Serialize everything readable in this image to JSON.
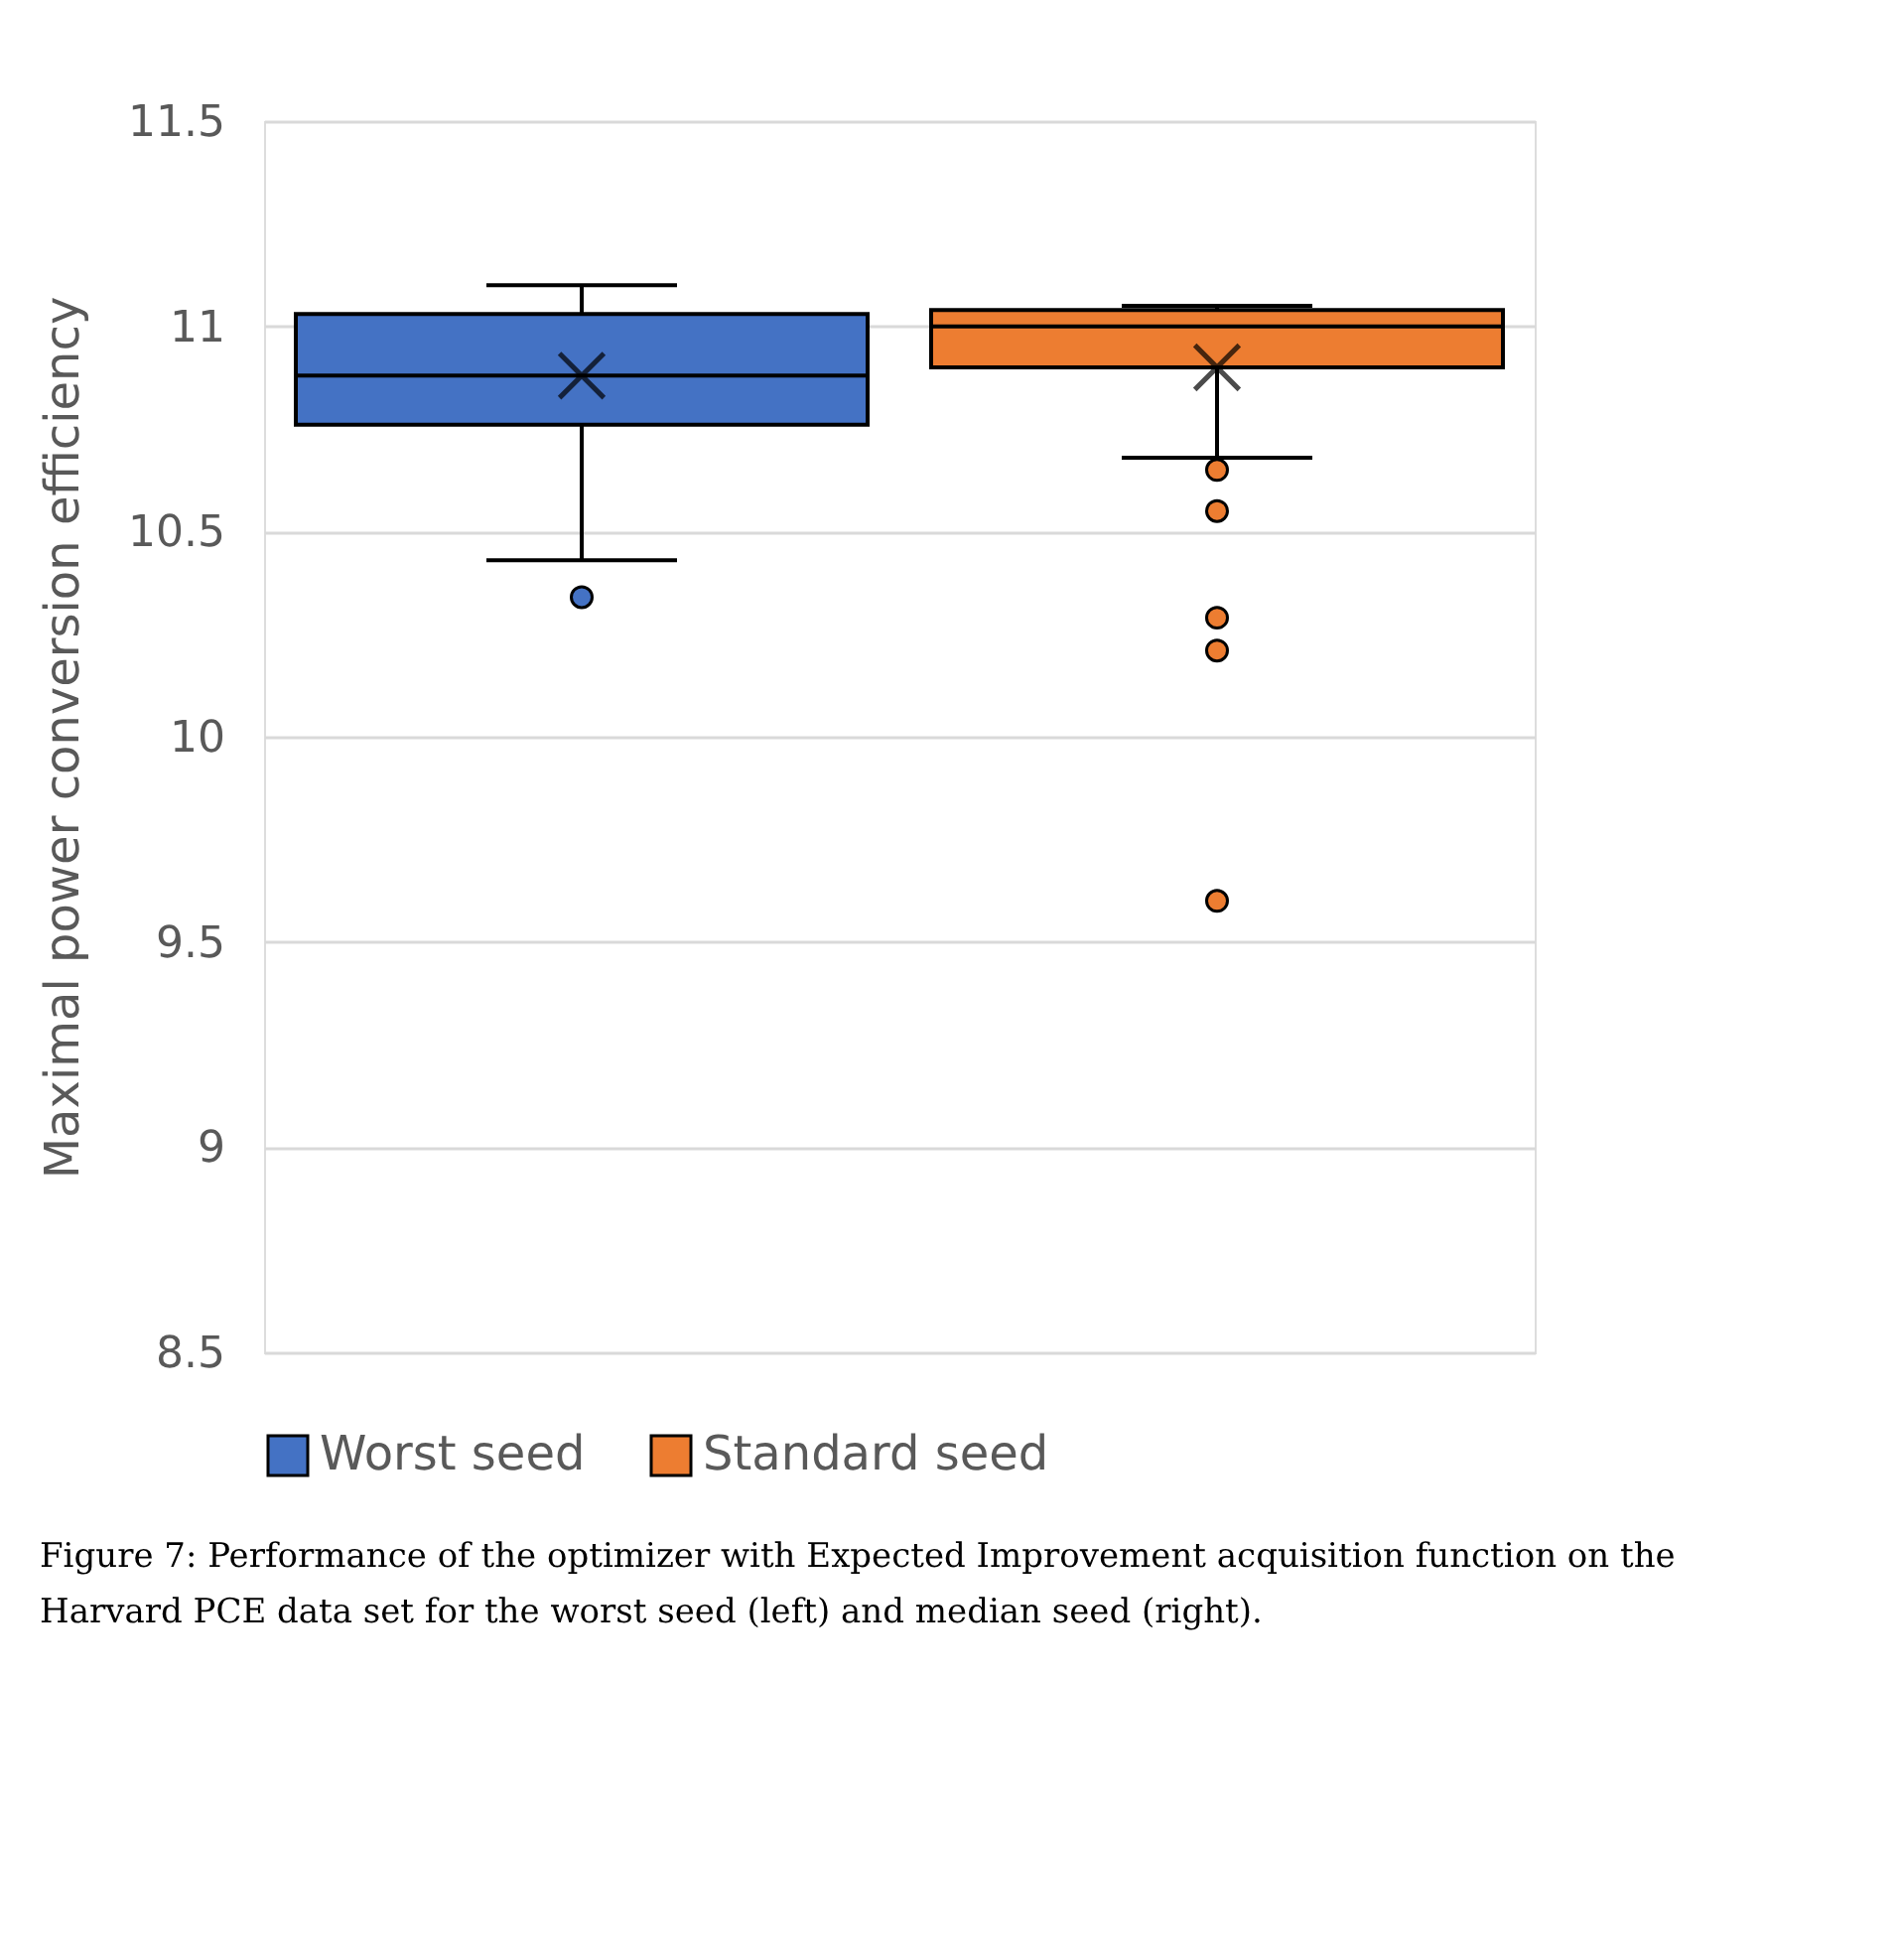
{
  "chart_data": {
    "type": "box",
    "ylabel": "Maximal power conversion efficiency",
    "categories": [
      null,
      null
    ],
    "series": [
      {
        "name": "Worst seed",
        "color": "#4472c4",
        "boxes": [
          {
            "low": 10.43,
            "q1": 10.76,
            "median": 10.88,
            "q3": 11.03,
            "high": 11.1,
            "mean": 10.88,
            "outliers": [
              10.34
            ]
          },
          null
        ]
      },
      {
        "name": "Standard seed",
        "color": "#ed7d31",
        "boxes": [
          null,
          {
            "low": 10.68,
            "q1": 10.9,
            "median": 11.0,
            "q3": 11.04,
            "high": 11.05,
            "mean": 10.9,
            "outliers": [
              10.65,
              10.55,
              10.29,
              10.21,
              9.6
            ]
          }
        ]
      }
    ],
    "ylim": [
      8.5,
      11.5
    ],
    "yticks": [
      8.5,
      9,
      9.5,
      10,
      10.5,
      11,
      11.5
    ],
    "grid": "y",
    "legend": "bottom",
    "annotations": [
      "Figure 7: Performance of the optimizer with Expected Improvement acquisition function on the Harvard PCE data set for the worst seed (left) and median seed (right)."
    ]
  }
}
